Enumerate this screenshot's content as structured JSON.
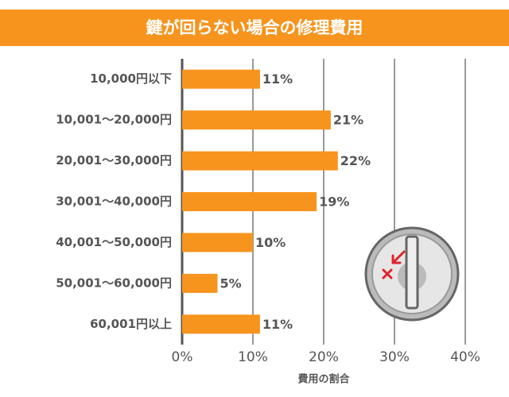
{
  "chart_data": {
    "type": "bar",
    "title": "鍵が回らない場合の修理費用",
    "categories": [
      "10,000円以下",
      "10,001～20,000円",
      "20,001～30,000円",
      "30,001～40,000円",
      "40,001～50,000円",
      "50,001～60,000円",
      "60,001円以上"
    ],
    "values": [
      11,
      21,
      22,
      19,
      10,
      5,
      11
    ],
    "value_labels": [
      "11%",
      "21%",
      "22%",
      "19%",
      "10%",
      "5%",
      "11%"
    ],
    "color": "#f7941d",
    "xlabel": "費用の割合",
    "xlim": [
      0,
      40
    ],
    "xticks": [
      {
        "value": 0,
        "label": "0%"
      },
      {
        "value": 10,
        "label": "10%"
      },
      {
        "value": 20,
        "label": "20%"
      },
      {
        "value": 30,
        "label": "30%"
      },
      {
        "value": 40,
        "label": "40%"
      }
    ],
    "grid": true
  }
}
